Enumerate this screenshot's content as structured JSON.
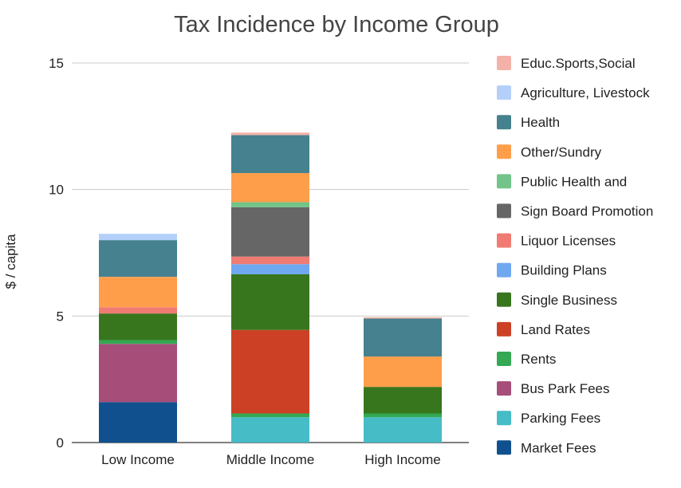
{
  "chart_data": {
    "type": "bar",
    "stacked": true,
    "title": "Tax Incidence by Income Group",
    "xlabel": "",
    "ylabel": "$ / capita",
    "ylim": [
      0,
      15
    ],
    "yticks": [
      0,
      5,
      10,
      15
    ],
    "grid": true,
    "legend_position": "right",
    "categories": [
      "Low Income",
      "Middle Income",
      "High Income"
    ],
    "series": [
      {
        "name": "Market Fees",
        "color": "#11508e",
        "values": [
          1.6,
          0,
          0
        ]
      },
      {
        "name": "Parking Fees",
        "color": "#45bcc6",
        "values": [
          0,
          1.0,
          1.0
        ]
      },
      {
        "name": "Bus Park Fees",
        "color": "#a64d79",
        "values": [
          2.3,
          0,
          0
        ]
      },
      {
        "name": "Rents",
        "color": "#34a853",
        "values": [
          0.15,
          0.15,
          0.15
        ]
      },
      {
        "name": "Land Rates",
        "color": "#cc4125",
        "values": [
          0,
          3.3,
          0
        ]
      },
      {
        "name": "Single Business",
        "color": "#38761d",
        "values": [
          1.05,
          2.2,
          1.05
        ]
      },
      {
        "name": "Building Plans",
        "color": "#6fa8f0",
        "values": [
          0,
          0.4,
          0
        ]
      },
      {
        "name": "Liquor Licenses",
        "color": "#f07b72",
        "values": [
          0.25,
          0.3,
          0
        ]
      },
      {
        "name": "Sign Board Promotion",
        "color": "#666666",
        "values": [
          0,
          1.95,
          0
        ]
      },
      {
        "name": "Public Health and",
        "color": "#73c48a",
        "values": [
          0,
          0.2,
          0
        ]
      },
      {
        "name": "Other/Sundry",
        "color": "#ff9e4a",
        "values": [
          1.2,
          1.15,
          1.2
        ]
      },
      {
        "name": "Health",
        "color": "#45818e",
        "values": [
          1.45,
          1.5,
          1.5
        ]
      },
      {
        "name": "Agriculture, Livestock",
        "color": "#b4d0fa",
        "values": [
          0.25,
          0,
          0
        ]
      },
      {
        "name": "Educ.Sports,Social",
        "color": "#f4b1a8",
        "values": [
          0,
          0.1,
          0.05
        ]
      }
    ]
  }
}
